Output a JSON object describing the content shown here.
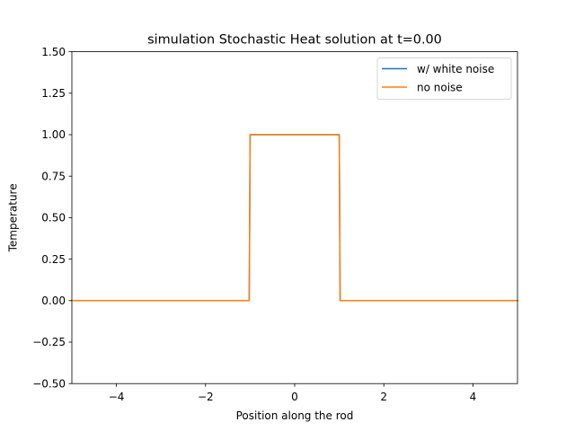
{
  "chart_data": {
    "type": "line",
    "title": "simulation Stochastic Heat solution at t=0.00",
    "xlabel": "Position along the rod",
    "ylabel": "Temperature",
    "xlim": [
      -5,
      5
    ],
    "ylim": [
      -0.5,
      1.5
    ],
    "xticks": [
      -4,
      -2,
      0,
      2,
      4
    ],
    "xtick_labels": [
      "−4",
      "−2",
      "0",
      "2",
      "4"
    ],
    "yticks": [
      -0.5,
      -0.25,
      0,
      0.25,
      0.5,
      0.75,
      1.0,
      1.25,
      1.5
    ],
    "ytick_labels": [
      "−0.50",
      "−0.25",
      "0.00",
      "0.25",
      "0.50",
      "0.75",
      "1.00",
      "1.25",
      "1.50"
    ],
    "grid": false,
    "legend_position": "top-right",
    "series": [
      {
        "name": "w/ white noise",
        "color": "#1f77b4",
        "x": [
          -5,
          -1.02,
          -1.0,
          0,
          1.0,
          1.02,
          5
        ],
        "y": [
          0,
          0,
          1,
          1,
          1,
          0,
          0
        ]
      },
      {
        "name": "no noise",
        "color": "#ff7f0e",
        "x": [
          -5,
          -1.02,
          -1.0,
          0,
          1.0,
          1.02,
          5
        ],
        "y": [
          0,
          0,
          1,
          1,
          1,
          0,
          0
        ]
      }
    ]
  }
}
